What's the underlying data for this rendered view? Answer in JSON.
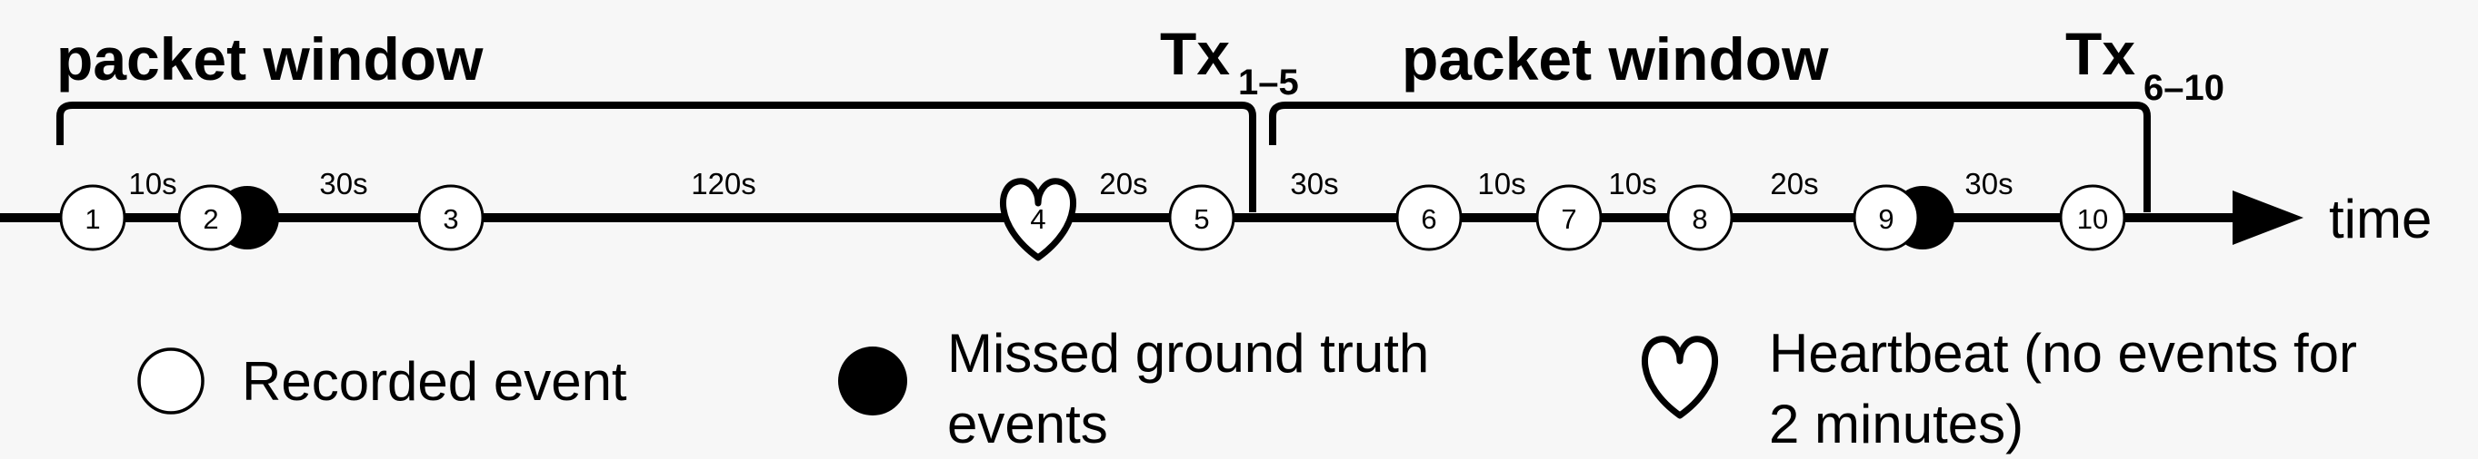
{
  "title_left": "packet window",
  "title_right": "packet window",
  "tx_left": {
    "base": "Tx",
    "sub": "1–5"
  },
  "tx_right": {
    "base": "Tx",
    "sub": "6–10"
  },
  "axis_label": "time",
  "events": [
    {
      "label": "1",
      "kind": "circle"
    },
    {
      "label": "2",
      "kind": "circle-missed"
    },
    {
      "label": "3",
      "kind": "circle"
    },
    {
      "label": "4",
      "kind": "heart"
    },
    {
      "label": "5",
      "kind": "circle"
    },
    {
      "label": "6",
      "kind": "circle"
    },
    {
      "label": "7",
      "kind": "circle"
    },
    {
      "label": "8",
      "kind": "circle"
    },
    {
      "label": "9",
      "kind": "circle-missed"
    },
    {
      "label": "10",
      "kind": "circle"
    }
  ],
  "gaps": [
    "10s",
    "30s",
    "120s",
    "20s",
    "30s",
    "10s",
    "10s",
    "20s",
    "30s"
  ],
  "legend": {
    "recorded": "Recorded event",
    "missed_line1": "Missed ground truth",
    "missed_line2": "events",
    "heartbeat_line1": "Heartbeat (no events for",
    "heartbeat_line2": "2 minutes)"
  }
}
